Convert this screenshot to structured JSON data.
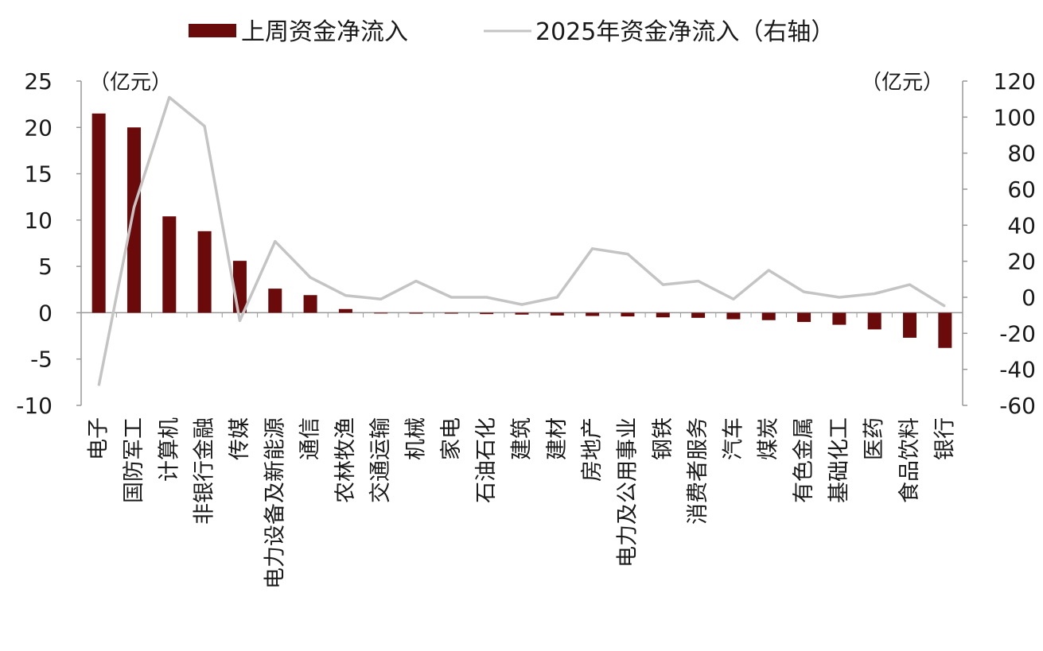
{
  "chart_data": {
    "type": "bar",
    "categories": [
      "电子",
      "国防军工",
      "计算机",
      "非银行金融",
      "传媒",
      "电力设备及新能源",
      "通信",
      "农林牧渔",
      "交通运输",
      "机械",
      "家电",
      "石油石化",
      "建筑",
      "建材",
      "房地产",
      "电力及公用事业",
      "钢铁",
      "消费者服务",
      "汽车",
      "煤炭",
      "有色金属",
      "基础化工",
      "医药",
      "食品饮料",
      "银行"
    ],
    "series": [
      {
        "name": "上周资金净流入",
        "kind": "bar",
        "axis": "left",
        "color": "#6b0a0a",
        "values": [
          21.5,
          20.0,
          10.4,
          8.8,
          5.6,
          2.6,
          1.9,
          0.4,
          -0.05,
          -0.1,
          -0.1,
          -0.15,
          -0.2,
          -0.3,
          -0.35,
          -0.4,
          -0.5,
          -0.55,
          -0.7,
          -0.8,
          -1.0,
          -1.3,
          -1.8,
          -2.7,
          -3.8
        ]
      },
      {
        "name": "2025年资金净流入（右轴）",
        "kind": "line",
        "axis": "right",
        "color": "#c4c4c4",
        "values": [
          -49,
          50,
          111,
          95,
          -13,
          31,
          11,
          1,
          -1,
          9,
          0,
          0,
          -4,
          0,
          27,
          24,
          7,
          9,
          -1,
          15,
          3,
          0,
          2,
          7,
          -5
        ]
      }
    ],
    "y_left": {
      "min": -10,
      "max": 25,
      "ticks": [
        25,
        20,
        15,
        10,
        5,
        0,
        -5,
        -10
      ],
      "unit": "（亿元）"
    },
    "y_right": {
      "min": -60,
      "max": 120,
      "ticks": [
        120,
        100,
        80,
        60,
        40,
        20,
        0,
        -20,
        -40,
        -60
      ],
      "unit": "（亿元）"
    },
    "legend_position": "top-center",
    "grid": false
  }
}
